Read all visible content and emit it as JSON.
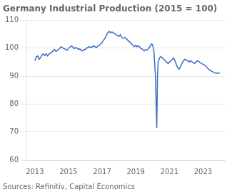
{
  "chart_data": {
    "type": "line",
    "title": "Germany Industrial Production (2015 = 100)",
    "annotation": "Sources: Refinitiv, Capital Economics",
    "color": "#3a6bc4",
    "grid": "y",
    "xlim": [
      2012.5,
      2024.3
    ],
    "xticks": [
      2013,
      2015,
      2017,
      2019,
      2021,
      2023
    ],
    "ylim": [
      60,
      110
    ],
    "yticks": [
      60,
      70,
      80,
      90,
      100,
      110
    ],
    "x": [
      2013.0,
      2013.08,
      2013.17,
      2013.25,
      2013.33,
      2013.42,
      2013.5,
      2013.58,
      2013.67,
      2013.75,
      2013.83,
      2013.92,
      2014.0,
      2014.08,
      2014.17,
      2014.25,
      2014.33,
      2014.42,
      2014.5,
      2014.58,
      2014.67,
      2014.75,
      2014.83,
      2014.92,
      2015.0,
      2015.08,
      2015.17,
      2015.25,
      2015.33,
      2015.42,
      2015.5,
      2015.58,
      2015.67,
      2015.75,
      2015.83,
      2015.92,
      2016.0,
      2016.08,
      2016.17,
      2016.25,
      2016.33,
      2016.42,
      2016.5,
      2016.58,
      2016.67,
      2016.75,
      2016.83,
      2016.92,
      2017.0,
      2017.08,
      2017.17,
      2017.25,
      2017.33,
      2017.42,
      2017.5,
      2017.58,
      2017.67,
      2017.75,
      2017.83,
      2017.92,
      2018.0,
      2018.08,
      2018.17,
      2018.25,
      2018.33,
      2018.42,
      2018.5,
      2018.58,
      2018.67,
      2018.75,
      2018.83,
      2018.92,
      2019.0,
      2019.08,
      2019.17,
      2019.25,
      2019.33,
      2019.42,
      2019.5,
      2019.58,
      2019.67,
      2019.75,
      2019.83,
      2019.92,
      2020.0,
      2020.08,
      2020.17,
      2020.25,
      2020.29,
      2020.33,
      2020.42,
      2020.5,
      2020.58,
      2020.67,
      2020.75,
      2020.83,
      2020.92,
      2021.0,
      2021.08,
      2021.17,
      2021.25,
      2021.33,
      2021.42,
      2021.5,
      2021.58,
      2021.67,
      2021.75,
      2021.83,
      2021.92,
      2022.0,
      2022.08,
      2022.17,
      2022.25,
      2022.33,
      2022.42,
      2022.5,
      2022.58,
      2022.67,
      2022.75,
      2022.83,
      2022.92,
      2023.0,
      2023.08,
      2023.17,
      2023.25,
      2023.33,
      2023.42,
      2023.5,
      2023.58,
      2023.67,
      2023.75,
      2023.83,
      2023.92,
      2024.0
    ],
    "values": [
      95.5,
      96.8,
      97.2,
      96.0,
      96.5,
      97.5,
      98.0,
      97.3,
      98.0,
      97.2,
      97.8,
      98.2,
      98.5,
      99.0,
      99.5,
      98.8,
      99.2,
      99.5,
      100.2,
      100.5,
      100.0,
      99.8,
      99.5,
      99.2,
      100.0,
      100.3,
      100.8,
      100.5,
      99.8,
      100.2,
      100.0,
      99.5,
      99.8,
      99.2,
      99.0,
      99.5,
      99.5,
      100.0,
      100.3,
      100.5,
      100.2,
      100.5,
      100.8,
      100.5,
      100.2,
      100.8,
      101.0,
      101.5,
      102.0,
      102.8,
      103.5,
      104.5,
      105.5,
      106.0,
      105.5,
      105.8,
      105.5,
      105.2,
      104.8,
      104.5,
      104.2,
      104.8,
      103.8,
      103.5,
      103.8,
      103.5,
      103.0,
      102.5,
      102.0,
      101.5,
      101.0,
      100.5,
      101.0,
      100.5,
      100.8,
      100.2,
      99.8,
      99.5,
      99.0,
      99.5,
      99.2,
      99.8,
      100.5,
      101.5,
      101.2,
      99.0,
      90.0,
      71.5,
      89.5,
      95.0,
      96.5,
      97.0,
      96.5,
      96.0,
      95.5,
      95.0,
      94.5,
      95.0,
      95.5,
      96.0,
      96.5,
      95.5,
      94.0,
      93.0,
      92.5,
      93.5,
      94.5,
      95.5,
      96.0,
      95.8,
      95.5,
      95.0,
      95.5,
      95.2,
      94.8,
      94.5,
      95.0,
      95.5,
      95.2,
      94.8,
      94.5,
      94.2,
      94.0,
      93.5,
      93.0,
      92.5,
      92.0,
      91.8,
      91.5,
      91.2,
      91.0,
      91.0,
      91.0,
      91.2
    ]
  }
}
